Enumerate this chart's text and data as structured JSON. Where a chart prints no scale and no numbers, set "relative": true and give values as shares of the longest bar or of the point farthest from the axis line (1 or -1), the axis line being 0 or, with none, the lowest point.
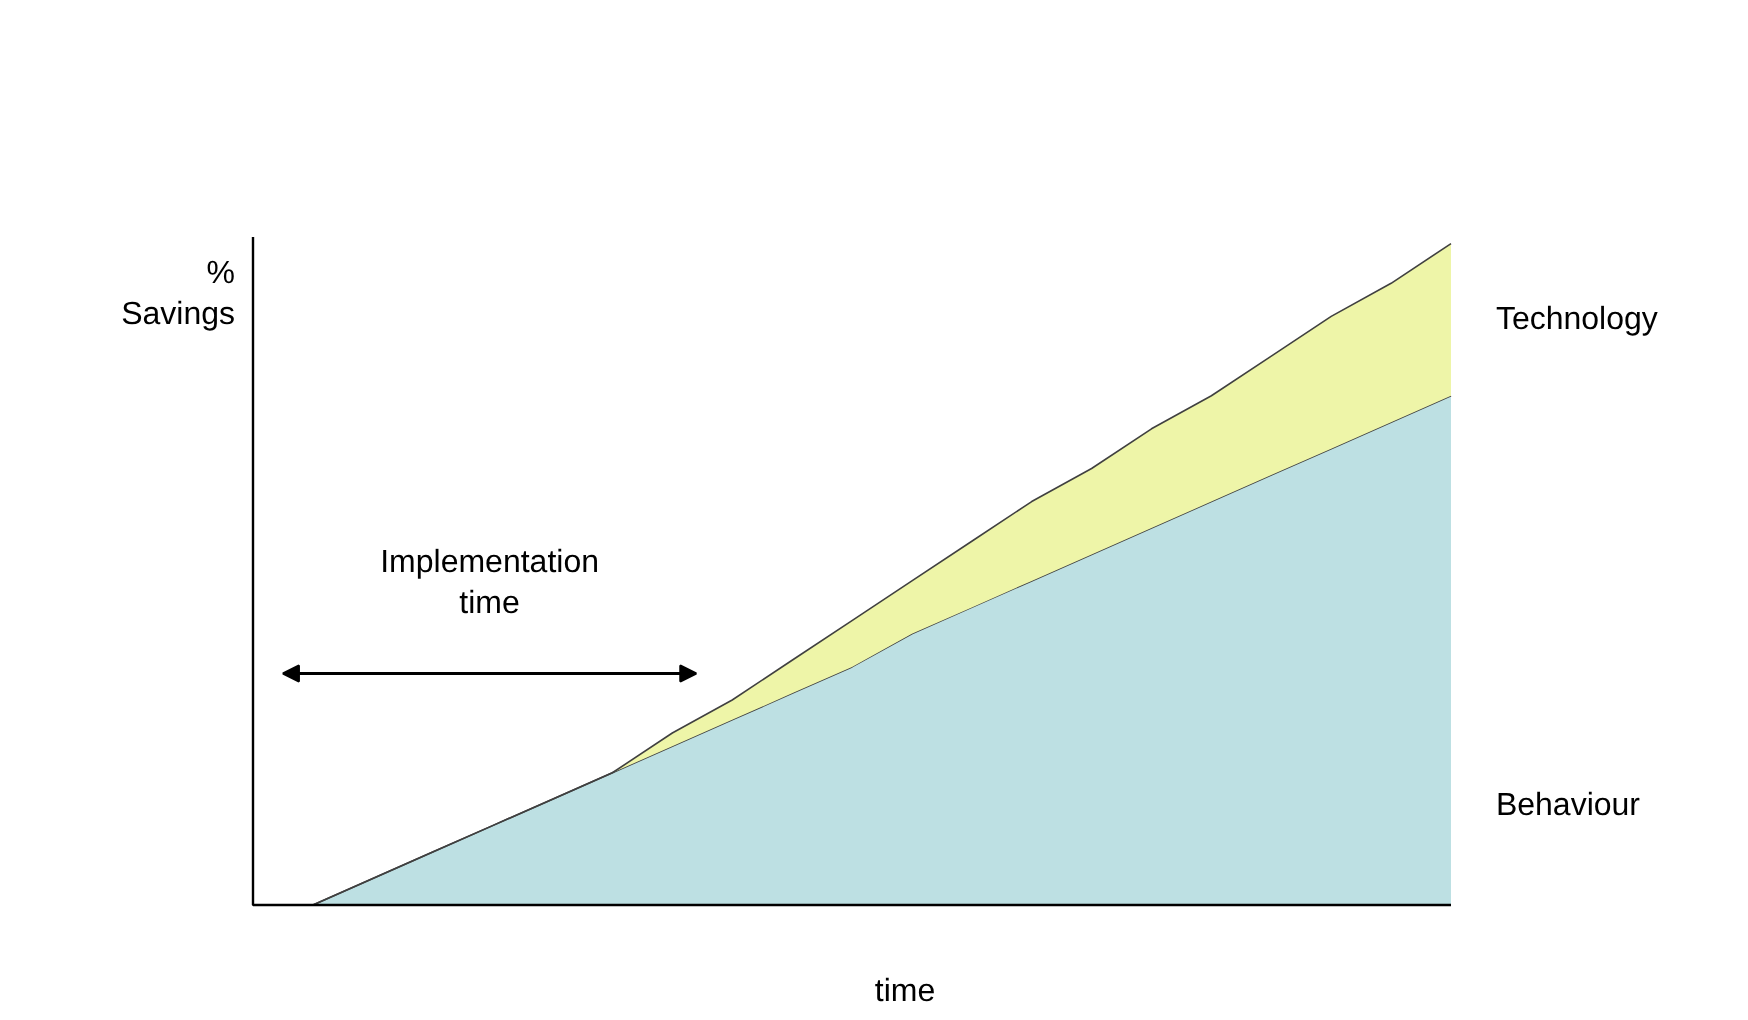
{
  "chart_data": {
    "type": "area",
    "stacked": true,
    "relative": true,
    "xlabel": "time",
    "ylabel": "% Savings",
    "annotations": [
      "Implementation time"
    ],
    "categories": [
      null,
      null,
      null,
      null,
      null,
      null,
      null,
      null,
      null,
      null,
      null,
      null,
      null,
      null,
      null,
      null,
      null,
      null,
      null,
      null,
      null
    ],
    "series": [
      {
        "name": "Behaviour",
        "color": "#bde0e3",
        "values": [
          0,
          0,
          0.04,
          0.08,
          0.12,
          0.16,
          0.2,
          0.24,
          0.28,
          0.32,
          0.36,
          0.41,
          0.45,
          0.49,
          0.53,
          0.57,
          0.61,
          0.65,
          0.69,
          0.73,
          0.77
        ]
      },
      {
        "name": "Technology",
        "color": "#eef5a8",
        "values": [
          0,
          0,
          0,
          0,
          0,
          0,
          0,
          0.02,
          0.03,
          0.05,
          0.07,
          0.08,
          0.1,
          0.12,
          0.13,
          0.15,
          0.16,
          0.18,
          0.2,
          0.21,
          0.23
        ]
      }
    ]
  }
}
